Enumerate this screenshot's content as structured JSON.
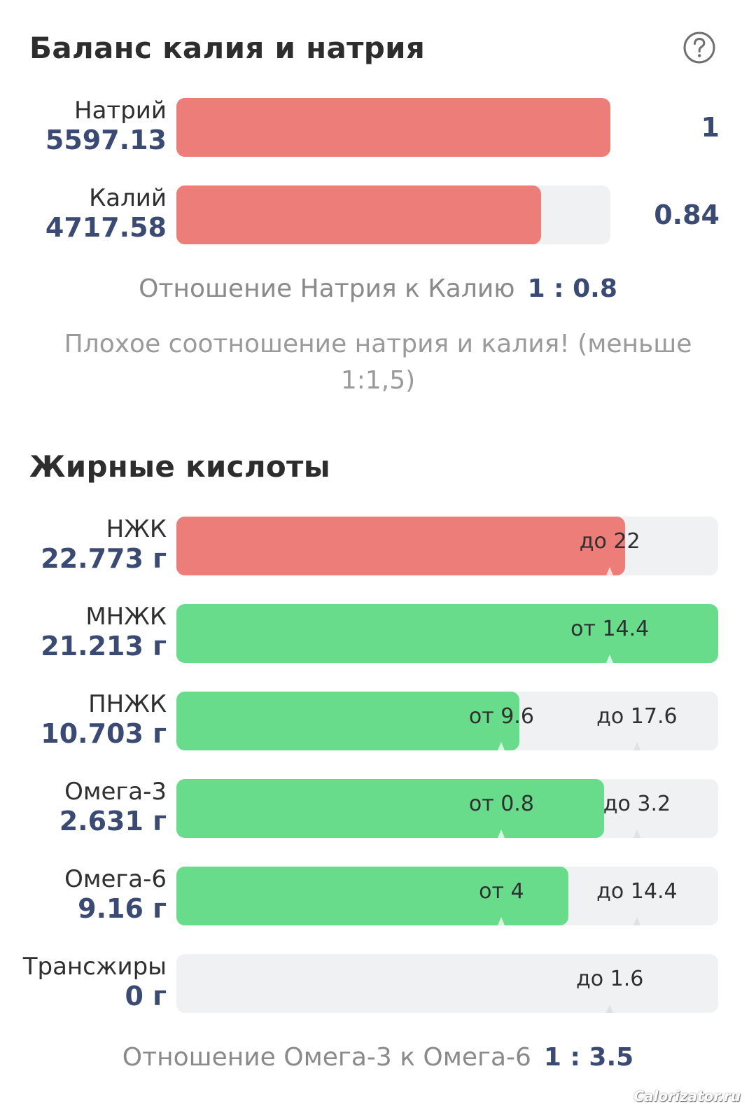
{
  "balance": {
    "title": "Баланс калия и натрия",
    "help_icon": "question-circle-icon",
    "rows": [
      {
        "name": "Натрий",
        "value": "5597.13",
        "ratio": "1",
        "fill": 1.0
      },
      {
        "name": "Калий",
        "value": "4717.58",
        "ratio": "0.84",
        "fill": 0.84
      }
    ],
    "ratio_label": "Отношение Натрия к Калию",
    "ratio_value": "1 : 0.8",
    "warning": "Плохое соотношение натрия и калия! (меньше 1:1,5)"
  },
  "fatty": {
    "title": "Жирные кислоты",
    "rows": [
      {
        "name": "НЖК",
        "value": "22.773 г",
        "fill": 0.828,
        "color": "red",
        "marks": [
          {
            "label": "до 22",
            "pos": 0.8
          }
        ]
      },
      {
        "name": "МНЖК",
        "value": "21.213 г",
        "fill": 1.0,
        "color": "green",
        "marks": [
          {
            "label": "от 14.4",
            "pos": 0.8
          }
        ]
      },
      {
        "name": "ПНЖК",
        "value": "10.703 г",
        "fill": 0.633,
        "color": "green",
        "marks": [
          {
            "label": "от 9.6",
            "pos": 0.6
          },
          {
            "label": "до 17.6",
            "pos": 0.85
          }
        ]
      },
      {
        "name": "Омега-3",
        "value": "2.631 г",
        "fill": 0.79,
        "color": "green",
        "marks": [
          {
            "label": "от 0.8",
            "pos": 0.6
          },
          {
            "label": "до 3.2",
            "pos": 0.85
          }
        ]
      },
      {
        "name": "Омега-6",
        "value": "9.16 г",
        "fill": 0.723,
        "color": "green",
        "marks": [
          {
            "label": "от 4",
            "pos": 0.6
          },
          {
            "label": "до 14.4",
            "pos": 0.85
          }
        ]
      },
      {
        "name": "Трансжиры",
        "value": "0 г",
        "fill": 0.0,
        "color": "green",
        "marks": [
          {
            "label": "до 1.6",
            "pos": 0.8
          }
        ]
      }
    ],
    "ratio_label": "Отношение Омега-3 к Омега-6",
    "ratio_value": "1 : 3.5"
  },
  "watermark": "Calorizator.ru",
  "colors": {
    "red": "#ed7d79",
    "green": "#68dc8b",
    "track": "#f0f1f3",
    "value": "#3b4a72"
  }
}
